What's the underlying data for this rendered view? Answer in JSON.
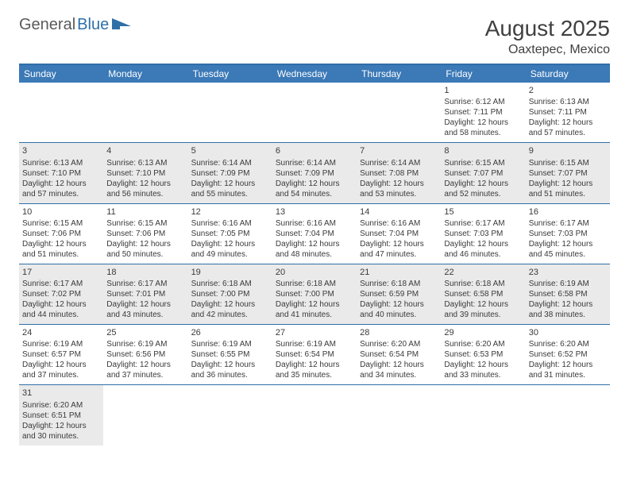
{
  "logo": {
    "text1": "General",
    "text2": "Blue"
  },
  "title": "August 2025",
  "location": "Oaxtepec, Mexico",
  "weekdays": [
    "Sunday",
    "Monday",
    "Tuesday",
    "Wednesday",
    "Thursday",
    "Friday",
    "Saturday"
  ],
  "colors": {
    "header_bar": "#3b79b7",
    "rule": "#2f6fa8",
    "shade": "#eaeaea",
    "text": "#3a3a3a",
    "logo_gray": "#5a5a5a",
    "logo_blue": "#2f6fa8"
  },
  "typography": {
    "title_fontsize": 28,
    "location_fontsize": 16,
    "weekday_fontsize": 12,
    "cell_fontsize": 10
  },
  "weeks": [
    [
      {
        "empty": true
      },
      {
        "empty": true
      },
      {
        "empty": true
      },
      {
        "empty": true
      },
      {
        "empty": true
      },
      {
        "num": "1",
        "sunrise": "6:12 AM",
        "sunset": "7:11 PM",
        "dl1": "Daylight: 12 hours",
        "dl2": "and 58 minutes."
      },
      {
        "num": "2",
        "sunrise": "6:13 AM",
        "sunset": "7:11 PM",
        "dl1": "Daylight: 12 hours",
        "dl2": "and 57 minutes."
      }
    ],
    [
      {
        "num": "3",
        "sunrise": "6:13 AM",
        "sunset": "7:10 PM",
        "dl1": "Daylight: 12 hours",
        "dl2": "and 57 minutes.",
        "shade": true
      },
      {
        "num": "4",
        "sunrise": "6:13 AM",
        "sunset": "7:10 PM",
        "dl1": "Daylight: 12 hours",
        "dl2": "and 56 minutes.",
        "shade": true
      },
      {
        "num": "5",
        "sunrise": "6:14 AM",
        "sunset": "7:09 PM",
        "dl1": "Daylight: 12 hours",
        "dl2": "and 55 minutes.",
        "shade": true
      },
      {
        "num": "6",
        "sunrise": "6:14 AM",
        "sunset": "7:09 PM",
        "dl1": "Daylight: 12 hours",
        "dl2": "and 54 minutes.",
        "shade": true
      },
      {
        "num": "7",
        "sunrise": "6:14 AM",
        "sunset": "7:08 PM",
        "dl1": "Daylight: 12 hours",
        "dl2": "and 53 minutes.",
        "shade": true
      },
      {
        "num": "8",
        "sunrise": "6:15 AM",
        "sunset": "7:07 PM",
        "dl1": "Daylight: 12 hours",
        "dl2": "and 52 minutes.",
        "shade": true
      },
      {
        "num": "9",
        "sunrise": "6:15 AM",
        "sunset": "7:07 PM",
        "dl1": "Daylight: 12 hours",
        "dl2": "and 51 minutes.",
        "shade": true
      }
    ],
    [
      {
        "num": "10",
        "sunrise": "6:15 AM",
        "sunset": "7:06 PM",
        "dl1": "Daylight: 12 hours",
        "dl2": "and 51 minutes."
      },
      {
        "num": "11",
        "sunrise": "6:15 AM",
        "sunset": "7:06 PM",
        "dl1": "Daylight: 12 hours",
        "dl2": "and 50 minutes."
      },
      {
        "num": "12",
        "sunrise": "6:16 AM",
        "sunset": "7:05 PM",
        "dl1": "Daylight: 12 hours",
        "dl2": "and 49 minutes."
      },
      {
        "num": "13",
        "sunrise": "6:16 AM",
        "sunset": "7:04 PM",
        "dl1": "Daylight: 12 hours",
        "dl2": "and 48 minutes."
      },
      {
        "num": "14",
        "sunrise": "6:16 AM",
        "sunset": "7:04 PM",
        "dl1": "Daylight: 12 hours",
        "dl2": "and 47 minutes."
      },
      {
        "num": "15",
        "sunrise": "6:17 AM",
        "sunset": "7:03 PM",
        "dl1": "Daylight: 12 hours",
        "dl2": "and 46 minutes."
      },
      {
        "num": "16",
        "sunrise": "6:17 AM",
        "sunset": "7:03 PM",
        "dl1": "Daylight: 12 hours",
        "dl2": "and 45 minutes."
      }
    ],
    [
      {
        "num": "17",
        "sunrise": "6:17 AM",
        "sunset": "7:02 PM",
        "dl1": "Daylight: 12 hours",
        "dl2": "and 44 minutes.",
        "shade": true
      },
      {
        "num": "18",
        "sunrise": "6:17 AM",
        "sunset": "7:01 PM",
        "dl1": "Daylight: 12 hours",
        "dl2": "and 43 minutes.",
        "shade": true
      },
      {
        "num": "19",
        "sunrise": "6:18 AM",
        "sunset": "7:00 PM",
        "dl1": "Daylight: 12 hours",
        "dl2": "and 42 minutes.",
        "shade": true
      },
      {
        "num": "20",
        "sunrise": "6:18 AM",
        "sunset": "7:00 PM",
        "dl1": "Daylight: 12 hours",
        "dl2": "and 41 minutes.",
        "shade": true
      },
      {
        "num": "21",
        "sunrise": "6:18 AM",
        "sunset": "6:59 PM",
        "dl1": "Daylight: 12 hours",
        "dl2": "and 40 minutes.",
        "shade": true
      },
      {
        "num": "22",
        "sunrise": "6:18 AM",
        "sunset": "6:58 PM",
        "dl1": "Daylight: 12 hours",
        "dl2": "and 39 minutes.",
        "shade": true
      },
      {
        "num": "23",
        "sunrise": "6:19 AM",
        "sunset": "6:58 PM",
        "dl1": "Daylight: 12 hours",
        "dl2": "and 38 minutes.",
        "shade": true
      }
    ],
    [
      {
        "num": "24",
        "sunrise": "6:19 AM",
        "sunset": "6:57 PM",
        "dl1": "Daylight: 12 hours",
        "dl2": "and 37 minutes."
      },
      {
        "num": "25",
        "sunrise": "6:19 AM",
        "sunset": "6:56 PM",
        "dl1": "Daylight: 12 hours",
        "dl2": "and 37 minutes."
      },
      {
        "num": "26",
        "sunrise": "6:19 AM",
        "sunset": "6:55 PM",
        "dl1": "Daylight: 12 hours",
        "dl2": "and 36 minutes."
      },
      {
        "num": "27",
        "sunrise": "6:19 AM",
        "sunset": "6:54 PM",
        "dl1": "Daylight: 12 hours",
        "dl2": "and 35 minutes."
      },
      {
        "num": "28",
        "sunrise": "6:20 AM",
        "sunset": "6:54 PM",
        "dl1": "Daylight: 12 hours",
        "dl2": "and 34 minutes."
      },
      {
        "num": "29",
        "sunrise": "6:20 AM",
        "sunset": "6:53 PM",
        "dl1": "Daylight: 12 hours",
        "dl2": "and 33 minutes."
      },
      {
        "num": "30",
        "sunrise": "6:20 AM",
        "sunset": "6:52 PM",
        "dl1": "Daylight: 12 hours",
        "dl2": "and 31 minutes."
      }
    ],
    [
      {
        "num": "31",
        "sunrise": "6:20 AM",
        "sunset": "6:51 PM",
        "dl1": "Daylight: 12 hours",
        "dl2": "and 30 minutes.",
        "shade": true
      },
      {
        "empty": true
      },
      {
        "empty": true
      },
      {
        "empty": true
      },
      {
        "empty": true
      },
      {
        "empty": true
      },
      {
        "empty": true
      }
    ]
  ]
}
